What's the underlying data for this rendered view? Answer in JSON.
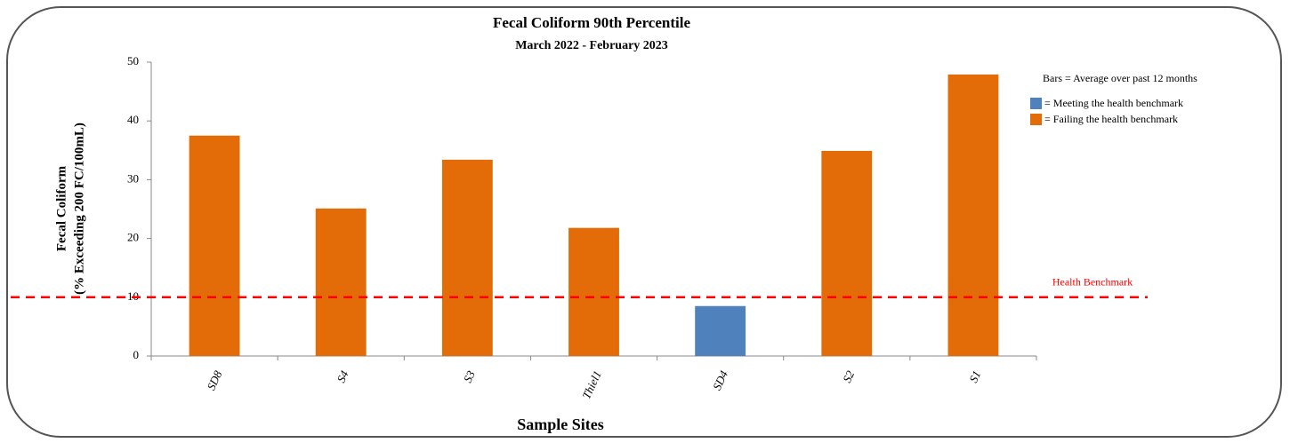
{
  "chart_data": {
    "type": "bar",
    "title": "Fecal Coliform 90th Percentile",
    "subtitle": "March 2022 - February 2023",
    "x_label": "Sample Sites",
    "y_label": [
      "Fecal Coliform",
      "(% Exceeding 200 FC/100mL)"
    ],
    "categories": [
      "SD8",
      "S4",
      "S3",
      "Thiel1",
      "SD4",
      "S2",
      "S1"
    ],
    "values": [
      37.5,
      25.1,
      33.4,
      21.8,
      8.5,
      34.9,
      47.9
    ],
    "colors": [
      "#e36c09",
      "#e36c09",
      "#e36c09",
      "#e36c09",
      "#4f81bd",
      "#e36c09",
      "#e36c09"
    ],
    "ylim": [
      0,
      50
    ],
    "yticks": [
      0,
      10,
      20,
      30,
      40,
      50
    ],
    "benchmark": {
      "value": 10,
      "label": "Health Benchmark",
      "color": "#ff0000"
    },
    "legend_note": "Bars = Average over past 12 months",
    "legend": [
      {
        "label": "= Meeting the health benchmark",
        "color": "#4f81bd"
      },
      {
        "label": "= Failing the health benchmark",
        "color": "#e36c09"
      }
    ]
  }
}
